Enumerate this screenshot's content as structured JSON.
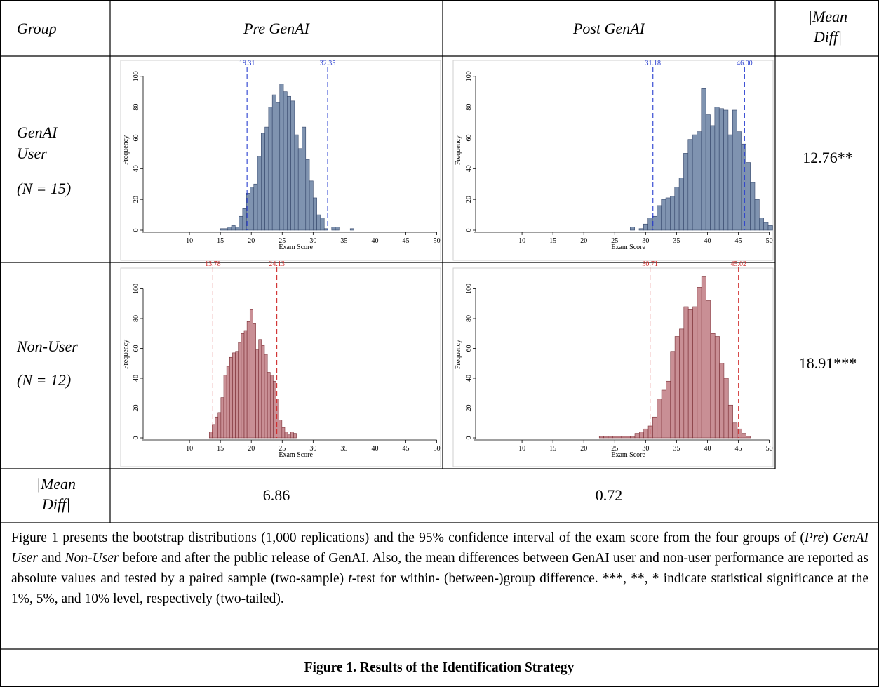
{
  "table": {
    "header": {
      "group": "Group",
      "pre": "Pre GenAI",
      "post": "Post GenAI",
      "mean_diff_line1": "|Mean",
      "mean_diff_line2": "Diff|"
    },
    "rows": [
      {
        "label_line1": "GenAI",
        "label_line2": "User",
        "n": "(N = 15)",
        "mean_diff": "12.76**"
      },
      {
        "label_line1": "Non-User",
        "n": "(N = 12)",
        "mean_diff": "18.91***"
      }
    ],
    "bottom_row": {
      "label_line1": "|Mean",
      "label_line2": "Diff|",
      "pre_value": "6.86",
      "post_value": "0.72"
    }
  },
  "caption": "Figure 1 presents the bootstrap distributions (1,000 replications) and the 95% confidence interval of the exam score from the four groups of (Pre) GenAI User and Non-User before and after the public release of GenAI. Also, the mean differences between GenAI user and non-user performance are reported as absolute values and tested by a paired sample (two-sample) t-test for within- (between-)group difference. ***, **, * indicate statistical significance at the 1%, 5%, and 10% level, respectively (two-tailed).",
  "figure_title": "Figure 1. Results of the Identification Strategy",
  "colors": {
    "user_fill": "#7f93b0",
    "user_stroke": "#34466a",
    "user_ci": "#2a3fd0",
    "nonuser_fill": "#c98f95",
    "nonuser_stroke": "#7a2d34",
    "nonuser_ci": "#d02a2a"
  },
  "chart_data": [
    {
      "id": "user_pre",
      "type": "bar",
      "xlabel": "Exam Score",
      "ylabel": "Frequency",
      "xlim": [
        2.5,
        50.5
      ],
      "ylim": [
        0,
        104
      ],
      "xticks": [
        10,
        15,
        20,
        25,
        30,
        35,
        40,
        45,
        50
      ],
      "yticks": [
        0,
        20,
        40,
        60,
        80,
        100
      ],
      "ci": [
        19.31,
        32.35
      ],
      "ci_labels": [
        "19.31",
        "32.35"
      ],
      "bin_start": 15,
      "bin_width": 0.6,
      "values": [
        1,
        1,
        2,
        3,
        2,
        9,
        14,
        24,
        28,
        30,
        48,
        63,
        67,
        80,
        88,
        83,
        95,
        90,
        87,
        84,
        62,
        53,
        67,
        46,
        32,
        21,
        10,
        8,
        1,
        0,
        2,
        2,
        0,
        0,
        0,
        1
      ]
    },
    {
      "id": "user_post",
      "type": "bar",
      "xlabel": "Exam Score",
      "ylabel": "Frequency",
      "xlim": [
        2.5,
        50.5
      ],
      "ylim": [
        0,
        104
      ],
      "xticks": [
        10,
        15,
        20,
        25,
        30,
        35,
        40,
        45,
        50
      ],
      "yticks": [
        0,
        20,
        40,
        60,
        80,
        100
      ],
      "ci": [
        31.18,
        46.0
      ],
      "ci_labels": [
        "31.18",
        "46.00"
      ],
      "bin_start": 27.5,
      "bin_width": 0.72,
      "values": [
        2,
        0,
        1,
        4,
        8,
        9,
        16,
        20,
        21,
        22,
        28,
        34,
        50,
        59,
        62,
        64,
        92,
        75,
        68,
        80,
        79,
        78,
        62,
        78,
        64,
        56,
        44,
        31,
        20,
        8,
        5,
        3
      ]
    },
    {
      "id": "nonuser_pre",
      "type": "bar",
      "xlabel": "Exam Score",
      "ylabel": "Frequency",
      "xlim": [
        2.5,
        50.5
      ],
      "ylim": [
        0,
        112
      ],
      "xticks": [
        10,
        15,
        20,
        25,
        30,
        35,
        40,
        45,
        50
      ],
      "yticks": [
        0,
        20,
        40,
        60,
        80,
        100
      ],
      "ci": [
        13.78,
        24.13
      ],
      "ci_labels": [
        "13.78",
        "24.13"
      ],
      "bin_start": 13.2,
      "bin_width": 0.47,
      "values": [
        4,
        9,
        14,
        17,
        27,
        42,
        48,
        54,
        57,
        58,
        64,
        70,
        72,
        78,
        86,
        77,
        59,
        66,
        62,
        56,
        44,
        42,
        38,
        26,
        12,
        7,
        4,
        2,
        4,
        3
      ]
    },
    {
      "id": "nonuser_post",
      "type": "bar",
      "xlabel": "Exam Score",
      "ylabel": "Frequency",
      "xlim": [
        2.5,
        50.5
      ],
      "ylim": [
        0,
        112
      ],
      "xticks": [
        10,
        15,
        20,
        25,
        30,
        35,
        40,
        45,
        50
      ],
      "yticks": [
        0,
        20,
        40,
        60,
        80,
        100
      ],
      "ci": [
        30.71,
        45.02
      ],
      "ci_labels": [
        "30.71",
        "45.02"
      ],
      "bin_start": 22.5,
      "bin_width": 0.72,
      "values": [
        1,
        1,
        1,
        1,
        1,
        1,
        1,
        1,
        3,
        4,
        6,
        8,
        14,
        26,
        32,
        38,
        58,
        68,
        73,
        88,
        86,
        88,
        101,
        108,
        92,
        70,
        68,
        50,
        40,
        22,
        10,
        6,
        3,
        1
      ]
    }
  ]
}
